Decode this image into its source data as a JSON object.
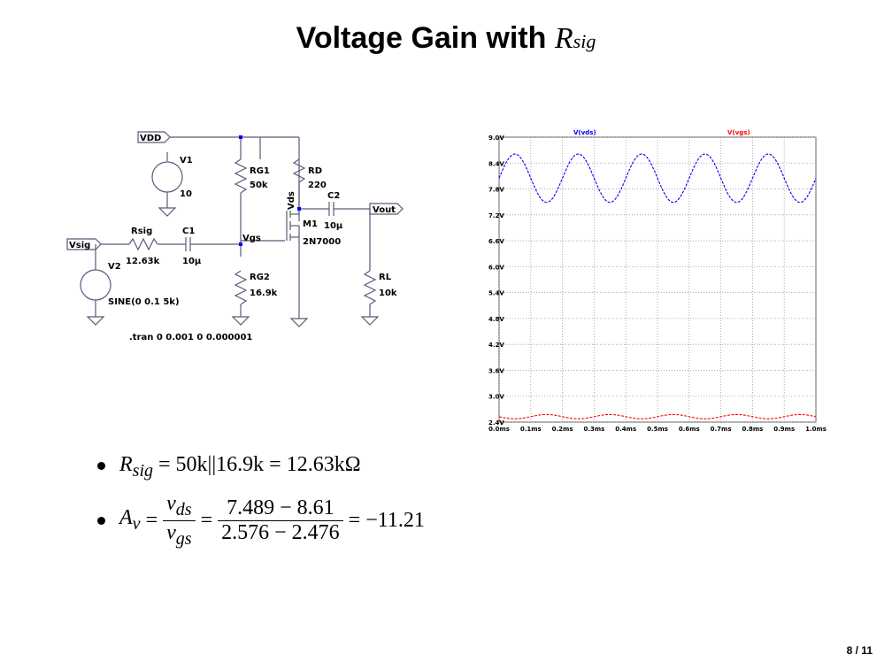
{
  "slide": {
    "title_text": "Voltage Gain with",
    "title_math": "R",
    "title_math_sub": "sig",
    "page": "8 / 11"
  },
  "schematic": {
    "labels": {
      "vdd": "VDD",
      "v1": "V1",
      "v1_val": "10",
      "rg1": "RG1",
      "rg1_val": "50k",
      "rd": "RD",
      "rd_val": "220",
      "vds": "Vds",
      "c2": "C2",
      "c2_val": "10µ",
      "vout": "Vout",
      "m1": "M1",
      "m1_part": "2N7000",
      "rsig": "Rsig",
      "rsig_val": "12.63k",
      "c1": "C1",
      "c1_val": "10µ",
      "vsig": "Vsig",
      "vgs": "Vgs",
      "v2": "V2",
      "v2_val": "SINE(0 0.1 5k)",
      "rg2": "RG2",
      "rg2_val": "16.9k",
      "rl": "RL",
      "rl_val": "10k",
      "tran": ".tran 0 0.001 0 0.000001"
    }
  },
  "chart_data": {
    "type": "line",
    "series": [
      {
        "name": "V(vds)",
        "color": "#0000ff",
        "mean": 8.05,
        "amplitude": 0.56,
        "freq_khz": 5,
        "phase": "sin"
      },
      {
        "name": "V(vgs)",
        "color": "#ff0000",
        "mean": 2.526,
        "amplitude": 0.05,
        "freq_khz": 5,
        "phase": "-sin"
      }
    ],
    "xlim": [
      0.0,
      1.0
    ],
    "ylim": [
      2.4,
      9.0
    ],
    "xticks": [
      "0.0ms",
      "0.1ms",
      "0.2ms",
      "0.3ms",
      "0.4ms",
      "0.5ms",
      "0.6ms",
      "0.7ms",
      "0.8ms",
      "0.9ms",
      "1.0ms"
    ],
    "yticks": [
      "9.0V",
      "8.4V",
      "7.8V",
      "7.2V",
      "6.6V",
      "6.0V",
      "5.4V",
      "4.8V",
      "4.2V",
      "3.6V",
      "3.0V",
      "2.4V"
    ],
    "grid": true
  },
  "bullets": {
    "b1_text": "R",
    "b1_sub": "sig",
    "b1_rest": " = 50k||16.9k = 12.63kΩ",
    "b2_lhs": "A",
    "b2_lhs_sub": "v",
    "b2_eq": " = ",
    "b2_f1_num": "v",
    "b2_f1_num_sub": "ds",
    "b2_f1_den": "v",
    "b2_f1_den_sub": "gs",
    "b2_f2_num": "7.489 − 8.61",
    "b2_f2_den": "2.576 − 2.476",
    "b2_result": " = −11.21"
  }
}
